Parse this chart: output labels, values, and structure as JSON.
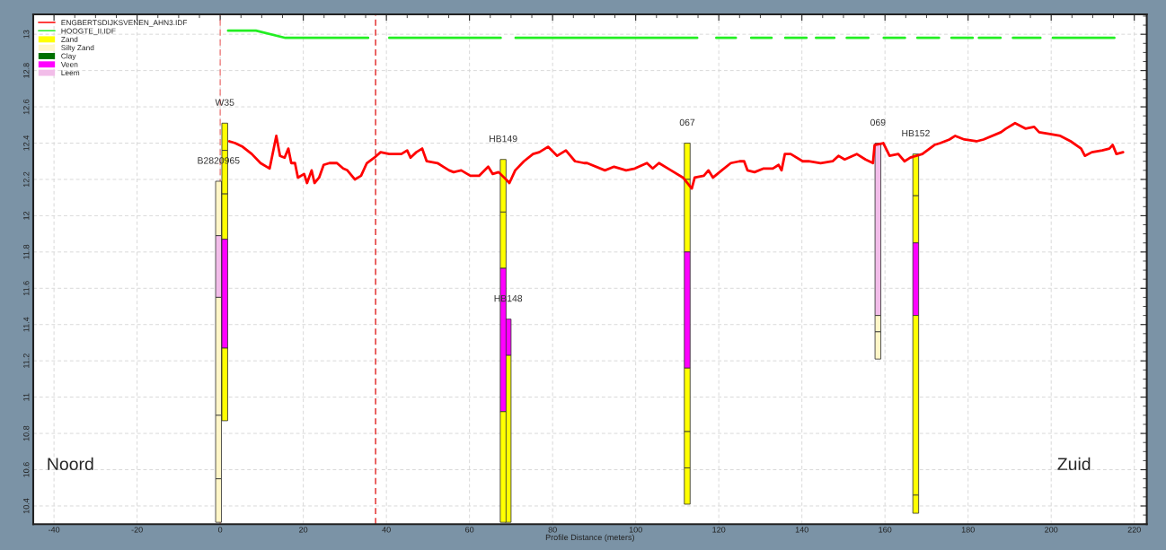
{
  "chart_data": {
    "type": "line",
    "xlabel": "Profile Distance (meters)",
    "xlim": [
      -45,
      223
    ],
    "ylim": [
      10.3,
      13.11
    ],
    "xticks": [
      -40,
      -20,
      0,
      20,
      40,
      60,
      80,
      100,
      120,
      140,
      160,
      180,
      200,
      220
    ],
    "yticks": [
      10.4,
      10.6,
      10.8,
      11,
      11.2,
      11.4,
      11.6,
      11.8,
      12,
      12.2,
      12.4,
      12.6,
      12.8,
      13
    ],
    "grid": true,
    "legend": "top left",
    "series": [
      {
        "name": "ENGBERTSDIJKSVENEN_AHN3.IDF",
        "color": "#ff0000",
        "x": [
          2.2,
          3.6,
          5.4,
          7.6,
          9.7,
          11.9,
          13.5,
          14.4,
          15.5,
          16.4,
          17.1,
          18.0,
          18.7,
          20.2,
          20.9,
          22.0,
          22.7,
          23.8,
          24.9,
          26.3,
          28.1,
          29.6,
          30.6,
          32.4,
          33.9,
          35.3,
          37.1,
          38.6,
          40.7,
          43.6,
          45.0,
          45.8,
          47.2,
          48.6,
          49.7,
          52.3,
          53.7,
          55.1,
          56.2,
          58.0,
          60.2,
          62.3,
          64.5,
          65.6,
          67.0,
          68.8,
          69.6,
          71.0,
          73.1,
          75.3,
          76.8,
          78.9,
          81.1,
          83.2,
          85.4,
          87.6,
          88.3,
          92.6,
          94.8,
          97.7,
          99.8,
          102.7,
          104.1,
          105.6,
          108.5,
          111.4,
          113.5,
          114.2,
          116.4,
          117.5,
          118.6,
          120.7,
          122.9,
          125.0,
          126.1,
          126.9,
          128.6,
          130.8,
          133.0,
          134.4,
          135.1,
          135.9,
          137.3,
          140.2,
          141.6,
          144.5,
          147.4,
          148.8,
          150.3,
          153.2,
          155.3,
          157.1,
          157.5,
          159.6,
          161.1,
          163.2,
          164.7,
          166.1,
          169.0,
          171.9,
          173.3,
          175.5,
          176.9,
          179.1,
          182.0,
          183.7,
          187.9,
          189.1,
          191.3,
          193.8,
          195.9,
          197.1,
          199.7,
          202.2,
          204.7,
          207.2,
          208.1,
          209.8,
          212.3,
          214.0,
          214.8,
          215.7,
          217.3
        ],
        "values": [
          12.41,
          12.4,
          12.38,
          12.34,
          12.29,
          12.26,
          12.44,
          12.33,
          12.32,
          12.37,
          12.29,
          12.29,
          12.21,
          12.23,
          12.18,
          12.25,
          12.18,
          12.21,
          12.28,
          12.29,
          12.29,
          12.26,
          12.25,
          12.2,
          12.22,
          12.29,
          12.32,
          12.35,
          12.34,
          12.34,
          12.36,
          12.32,
          12.35,
          12.37,
          12.3,
          12.29,
          12.27,
          12.25,
          12.24,
          12.25,
          12.22,
          12.22,
          12.27,
          12.23,
          12.24,
          12.2,
          12.18,
          12.25,
          12.3,
          12.34,
          12.35,
          12.38,
          12.33,
          12.36,
          12.3,
          12.29,
          12.29,
          12.25,
          12.27,
          12.25,
          12.26,
          12.29,
          12.26,
          12.29,
          12.25,
          12.21,
          12.15,
          12.21,
          12.22,
          12.25,
          12.21,
          12.25,
          12.29,
          12.3,
          12.3,
          12.25,
          12.24,
          12.26,
          12.26,
          12.28,
          12.25,
          12.34,
          12.34,
          12.3,
          12.3,
          12.29,
          12.3,
          12.33,
          12.31,
          12.34,
          12.31,
          12.29,
          12.39,
          12.4,
          12.33,
          12.34,
          12.3,
          12.32,
          12.34,
          12.39,
          12.4,
          12.42,
          12.44,
          12.42,
          12.41,
          12.42,
          12.46,
          12.48,
          12.51,
          12.48,
          12.49,
          12.46,
          12.45,
          12.44,
          12.41,
          12.37,
          12.33,
          12.35,
          12.36,
          12.37,
          12.39,
          12.34,
          12.35
        ]
      },
      {
        "name": "HOOGTE_II.IDF",
        "color": "#22ee22",
        "x": [
          1.9,
          8.6,
          15.7,
          35.6,
          38.0,
          40.7,
          67.5,
          69.0,
          71.1,
          114.8,
          117.0,
          119.4,
          124.1,
          126.0,
          127.8,
          132.7,
          134.0,
          136.0,
          141.1,
          142.0,
          143.4,
          147.8,
          149.0,
          150.8,
          156.0,
          158.0,
          159.7,
          164.8,
          166.0,
          167.8,
          173.0,
          174.5,
          176.0,
          181.1,
          182.0,
          182.6,
          187.8,
          189.0,
          190.8,
          197.4,
          199.0,
          200.4,
          215.2
        ],
        "values": [
          13.02,
          13.02,
          12.98,
          12.98,
          null,
          12.98,
          12.98,
          null,
          12.98,
          12.98,
          null,
          12.98,
          12.98,
          null,
          12.98,
          12.98,
          null,
          12.98,
          12.98,
          null,
          12.98,
          12.98,
          null,
          12.98,
          12.98,
          null,
          12.98,
          12.98,
          null,
          12.98,
          12.98,
          null,
          12.98,
          12.98,
          null,
          12.98,
          12.98,
          null,
          12.98,
          12.98,
          null,
          12.98,
          12.98
        ]
      },
      {
        "name": "Zand",
        "type": "bar",
        "color": "#ffff00"
      },
      {
        "name": "Silty Zand",
        "type": "bar",
        "color": "#fff6c8"
      },
      {
        "name": "Clay",
        "type": "bar",
        "color": "#007000"
      },
      {
        "name": "Veen",
        "type": "bar",
        "color": "#ff00ff"
      },
      {
        "name": "Leem",
        "type": "bar",
        "color": "#f2bde9"
      },
      {
        "type": "bar",
        "x": [
          -0.4,
          1.1,
          68.1,
          69.3,
          112.4,
          158.3,
          167.4
        ],
        "base": [
          11.89,
          12.36,
          12.02,
          11.23,
          12.2,
          11.45,
          12.11
        ],
        "values": [
          0.3,
          0.15,
          0.29,
          0.2,
          0.2,
          0.95,
          0.23
        ],
        "colors": [
          "#fff6c8",
          "#ffff00",
          "#ffff00",
          "#ff00ff",
          "#ffff00",
          "#f2bde9",
          "#ffff00"
        ]
      },
      {
        "type": "bar",
        "x": [
          -0.4,
          1.1,
          68.1,
          69.3,
          112.4,
          158.3,
          167.4
        ],
        "base": [
          11.55,
          12.12,
          11.71,
          10.31,
          11.8,
          11.36,
          11.85
        ],
        "values": [
          0.34,
          0.24,
          0.31,
          0.92,
          0.4,
          0.09,
          0.26
        ],
        "colors": [
          "#f2bde9",
          "#ffff00",
          "#ffff00",
          "#ffff00",
          "#ffff00",
          "#fff6c8",
          "#ffff00"
        ]
      },
      {
        "type": "bar",
        "x": [
          -0.4,
          1.1,
          68.1,
          112.4,
          158.3,
          167.4
        ],
        "base": [
          10.9,
          11.87,
          10.92,
          11.16,
          11.21,
          11.45
        ],
        "values": [
          0.65,
          0.25,
          0.79,
          0.64,
          0.15,
          0.4
        ],
        "colors": [
          "#fff6c8",
          "#ffff00",
          "#ff00ff",
          "#ff00ff",
          "#fff6c8",
          "#ff00ff"
        ]
      },
      {
        "type": "bar",
        "x": [
          -0.4,
          1.1,
          68.1,
          112.4,
          167.4
        ],
        "base": [
          10.55,
          11.27,
          10.31,
          10.81,
          10.46
        ],
        "values": [
          0.35,
          0.6,
          0.61,
          0.35,
          0.99
        ],
        "colors": [
          "#fff6c8",
          "#ff00ff",
          "#ffff00",
          "#ffff00",
          "#ffff00"
        ]
      },
      {
        "type": "bar",
        "x": [
          -0.4,
          1.1,
          112.4,
          167.4
        ],
        "base": [
          10.31,
          10.87,
          10.61,
          10.36
        ],
        "values": [
          0.24,
          0.4,
          0.2,
          0.1
        ],
        "colors": [
          "#fff6c8",
          "#ffff00",
          "#ffff00",
          "#ffff00"
        ]
      },
      {
        "type": "bar",
        "x": [
          112.4
        ],
        "base": [
          10.41
        ],
        "values": [
          0.2
        ],
        "colors": [
          "#ffff00"
        ]
      }
    ],
    "ref_lines": [
      {
        "axis": "x",
        "value": 0,
        "color": "#f08080",
        "line_style": "dashed"
      },
      {
        "axis": "x",
        "value": 37.4,
        "color": "#e02020",
        "line_style": "dashed"
      }
    ],
    "annotations": [
      {
        "text": "W35",
        "x": 1.1,
        "y": 12.51
      },
      {
        "text": "B2820965",
        "x": -0.4,
        "y": 12.19
      },
      {
        "text": "HB149",
        "x": 68.1,
        "y": 12.31
      },
      {
        "text": "HB148",
        "x": 69.3,
        "y": 11.43
      },
      {
        "text": "067",
        "x": 112.4,
        "y": 12.4
      },
      {
        "text": "069",
        "x": 158.3,
        "y": 12.4
      },
      {
        "text": "HB152",
        "x": 167.4,
        "y": 12.34
      },
      "Noord",
      "Zuid"
    ]
  }
}
